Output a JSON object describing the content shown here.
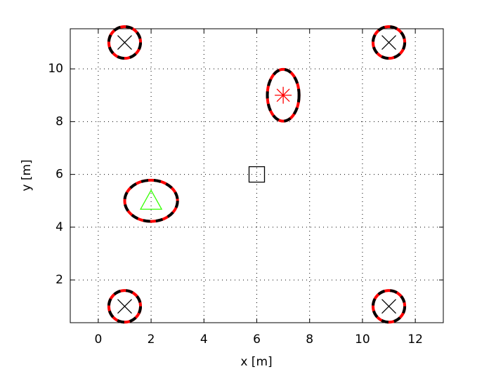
{
  "chart_data": {
    "type": "scatter",
    "xlabel": "x [m]",
    "ylabel": "y [m]",
    "xlim": [
      -1.06,
      13.06
    ],
    "ylim": [
      0.38,
      11.52
    ],
    "xticks": [
      0,
      2,
      4,
      6,
      8,
      10,
      12
    ],
    "yticks": [
      2,
      4,
      6,
      8,
      10
    ],
    "grid": true,
    "series": [
      {
        "marker": "x",
        "color": "#000000",
        "x": [
          1,
          1,
          11,
          11
        ],
        "y": [
          1,
          11,
          1,
          11
        ]
      },
      {
        "marker": "asterisk",
        "color": "#ff0000",
        "x": [
          7
        ],
        "y": [
          9
        ]
      },
      {
        "marker": "triangle",
        "color": "#33ff00",
        "x": [
          2
        ],
        "y": [
          5
        ]
      },
      {
        "marker": "square",
        "color": "#000000",
        "x": [
          6
        ],
        "y": [
          6
        ]
      }
    ],
    "ellipses": {
      "colors": [
        "#ff0000",
        "#000000"
      ],
      "cx": [
        1,
        1,
        11,
        11,
        7,
        2
      ],
      "cy": [
        1,
        11,
        1,
        11,
        9,
        5
      ],
      "rx": [
        0.6,
        0.6,
        0.6,
        0.6,
        0.6,
        1.0
      ],
      "ry": [
        0.6,
        0.6,
        0.6,
        0.6,
        0.98,
        0.78
      ]
    }
  }
}
